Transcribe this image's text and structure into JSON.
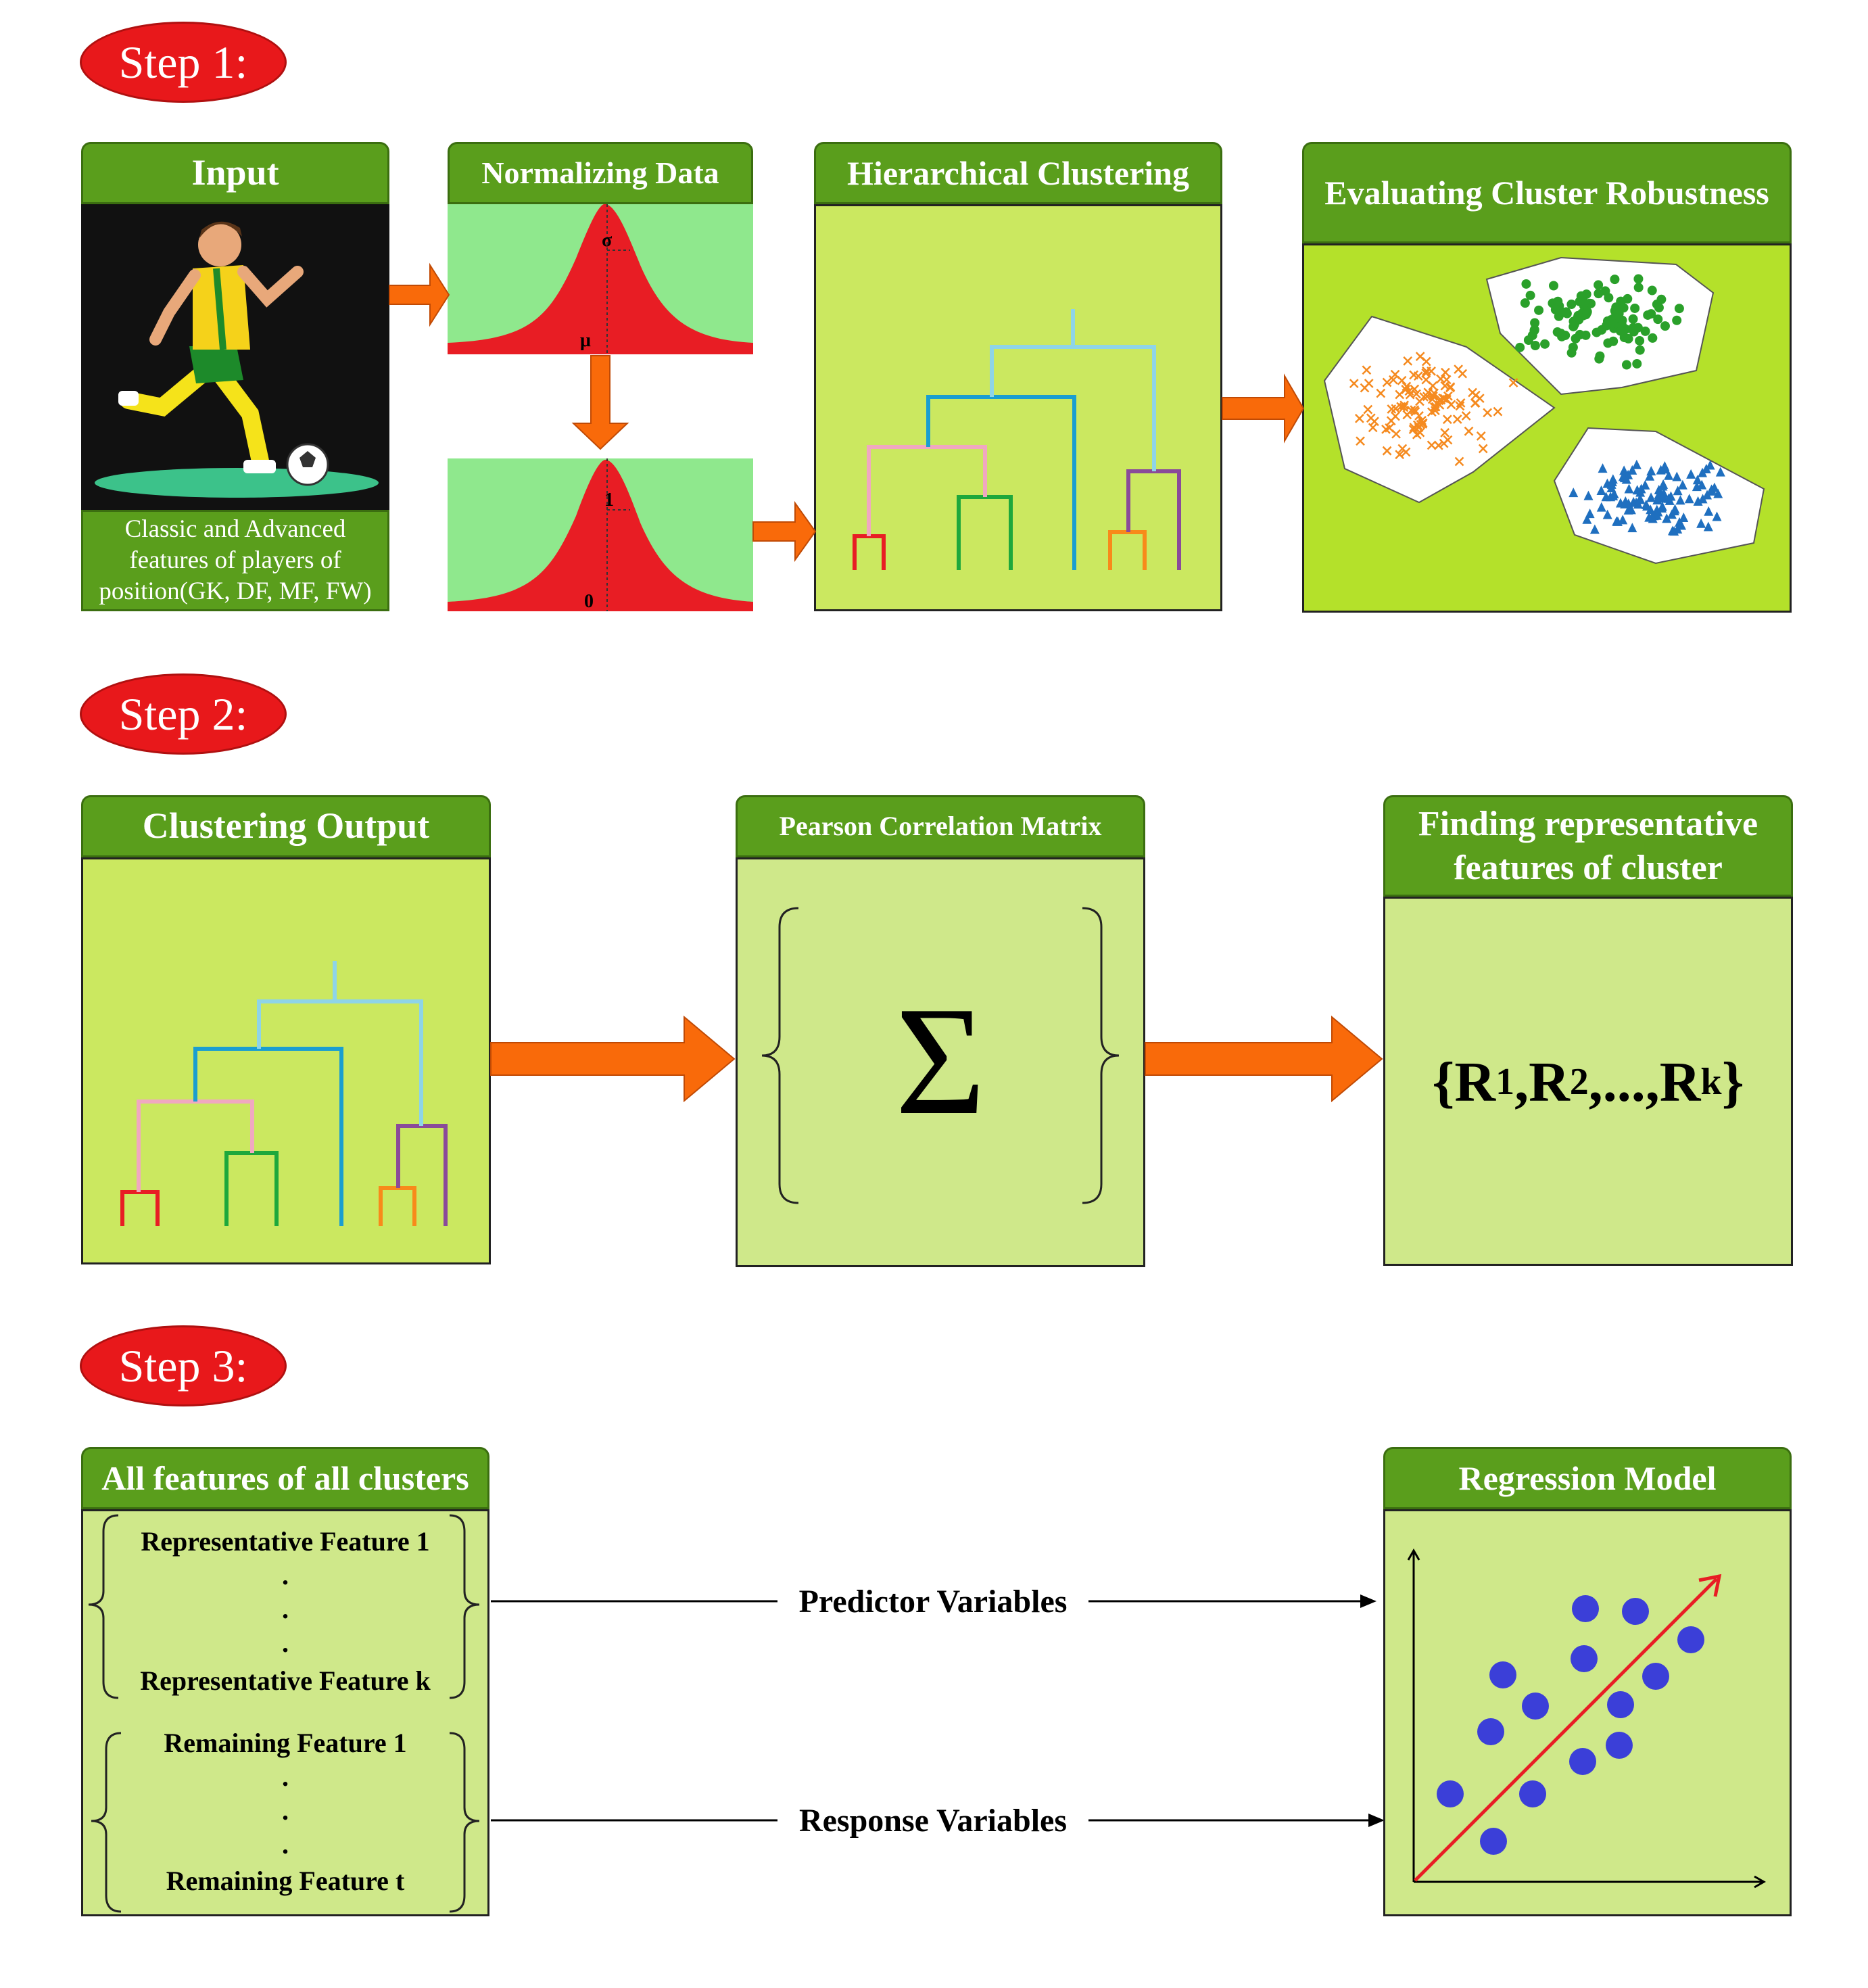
{
  "steps": [
    "Step 1:",
    "Step 2:",
    "Step 3:"
  ],
  "step1": {
    "input_title": "Input",
    "input_caption": "Classic and Advanced features of players of position(GK, DF, MF, FW)",
    "normalizing_title": "Normalizing Data",
    "curve_top_labels": [
      "σ",
      "μ"
    ],
    "curve_bottom_labels": [
      "1",
      "0"
    ],
    "hierarchical_title": "Hierarchical Clustering",
    "evaluating_title": "Evaluating Cluster Robustness"
  },
  "step2": {
    "clustering_output_title": "Clustering Output",
    "pearson_title": "Pearson Correlation Matrix",
    "sigma": "Σ",
    "finding_title": "Finding representative features of cluster",
    "representatives": {
      "open": "{R",
      "r1": "1",
      "sep1": ",R",
      "r2": "2",
      "sep2": ",...,R",
      "rk": "k",
      "close": "}"
    }
  },
  "step3": {
    "all_features_title": "All features of all clusters",
    "rep_first": "Representative Feature 1",
    "rep_last": "Representative Feature k",
    "rem_first": "Remaining Feature 1",
    "rem_last": "Remaining Feature t",
    "dots": ".",
    "predictor_label": "Predictor Variables",
    "response_label": "Response Variables",
    "regression_title": "Regression Model"
  },
  "colors": {
    "step_red": "#e8181b",
    "header_green": "#5a9e1c",
    "panel_lime": "#cbe860",
    "panel_bright": "#b4e12a",
    "panel_pale": "#cfe88a",
    "curve_bg": "#8fe88d",
    "curve_red": "#e81d24",
    "arrow_orange": "#f96a0a",
    "point_blue": "#3b3fd8"
  }
}
